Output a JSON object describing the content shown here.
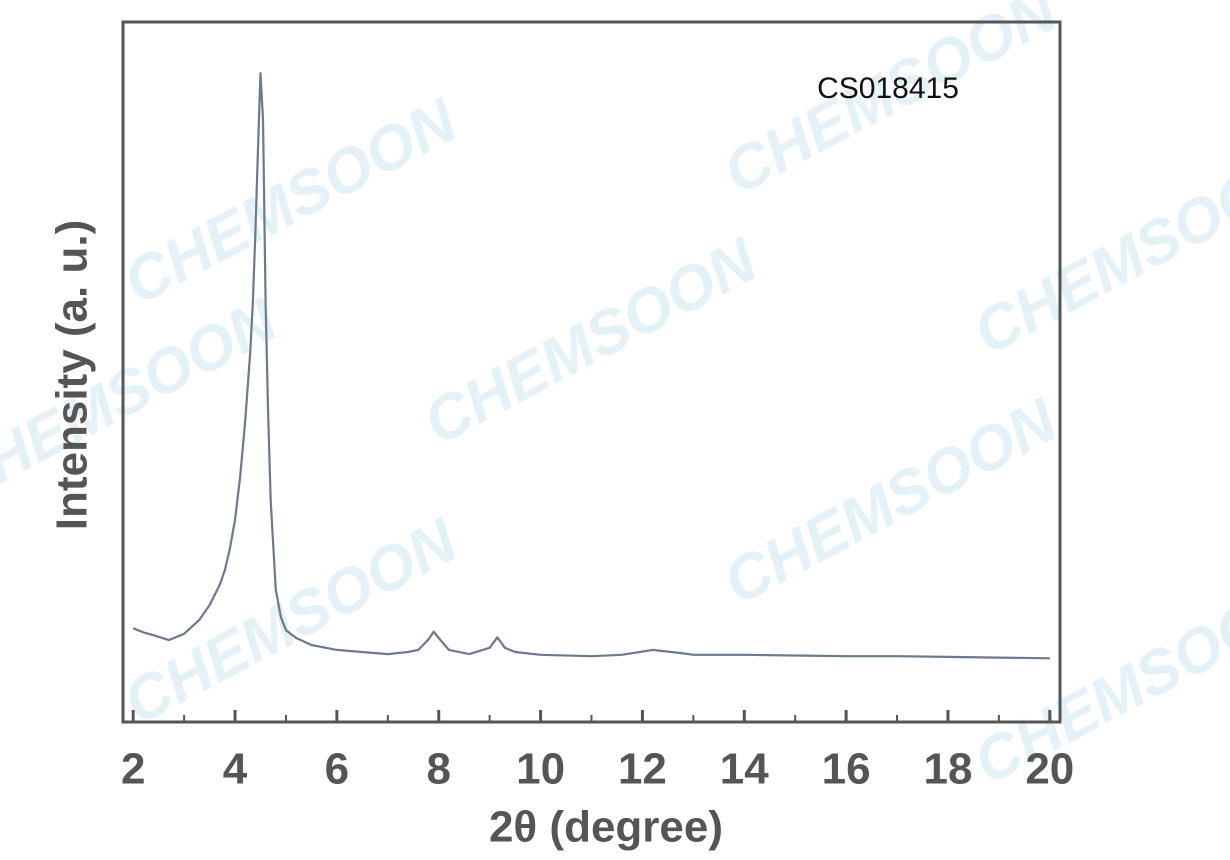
{
  "chart_data": {
    "type": "line",
    "annotation": "CS018415",
    "watermark": "CHEMSOON",
    "x_label": "2θ (degree)",
    "y_label": "Intensity (a. u.)",
    "xlim": [
      1.8,
      20.2
    ],
    "ylim": [
      0,
      100
    ],
    "xticks": [
      2,
      4,
      6,
      8,
      10,
      12,
      14,
      16,
      18,
      20
    ],
    "xminorticks": [
      3,
      5,
      7,
      9,
      11,
      13,
      15,
      17,
      19
    ],
    "series": [
      {
        "color": "#6b7a8c",
        "x": [
          2.0,
          2.2,
          2.4,
          2.7,
          3.0,
          3.3,
          3.5,
          3.7,
          3.8,
          3.9,
          4.0,
          4.1,
          4.2,
          4.3,
          4.35,
          4.4,
          4.45,
          4.5,
          4.55,
          4.6,
          4.65,
          4.7,
          4.8,
          4.9,
          5.0,
          5.2,
          5.5,
          6.0,
          6.5,
          7.0,
          7.4,
          7.6,
          7.8,
          7.9,
          8.0,
          8.2,
          8.6,
          9.0,
          9.15,
          9.3,
          9.5,
          10.0,
          11.0,
          11.6,
          12.2,
          12.8,
          13.0,
          14.0,
          15.0,
          16.0,
          17.0,
          18.0,
          19.0,
          20.0
        ],
        "values": [
          13.4,
          12.8,
          12.4,
          11.7,
          12.6,
          14.6,
          16.7,
          19.6,
          21.7,
          24.8,
          28.9,
          35.0,
          43.0,
          53.0,
          60.0,
          70.0,
          81.7,
          92.7,
          86.0,
          60.0,
          44.0,
          31.7,
          18.9,
          15.0,
          13.1,
          12.0,
          11.0,
          10.3,
          10.0,
          9.7,
          10.0,
          10.3,
          11.8,
          12.9,
          12.0,
          10.3,
          9.7,
          10.6,
          12.1,
          10.6,
          10.0,
          9.6,
          9.4,
          9.6,
          10.3,
          9.8,
          9.6,
          9.6,
          9.5,
          9.4,
          9.4,
          9.3,
          9.2,
          9.1
        ]
      }
    ]
  }
}
